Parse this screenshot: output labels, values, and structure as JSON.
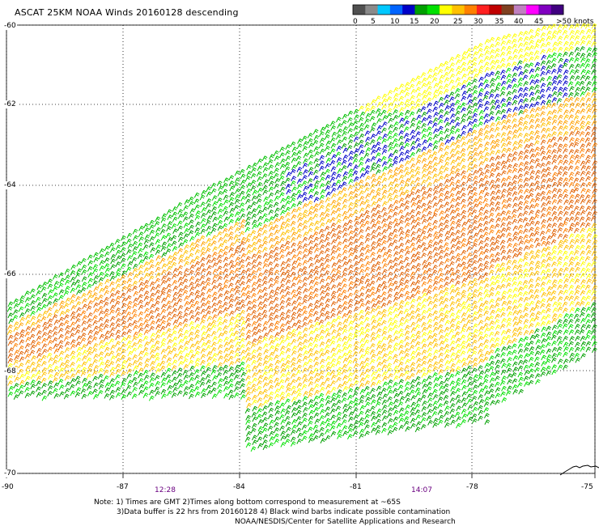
{
  "title": "ASCAT 25KM NOAA Winds 20160128 descending",
  "legend": {
    "labels": [
      "0",
      "5",
      "10",
      "15",
      "20",
      "25",
      "30",
      "35",
      "40",
      "45",
      ">50 knots"
    ],
    "colors": [
      "#505050",
      "#8a8a8a",
      "#00c8ff",
      "#0064ff",
      "#0000c8",
      "#00a000",
      "#00e000",
      "#ffff00",
      "#ffc000",
      "#ff8000",
      "#ff2020",
      "#c00000",
      "#7f4020",
      "#c080c0",
      "#ff00ff",
      "#8000c0",
      "#400080"
    ]
  },
  "axes": {
    "lat_labels": [
      "-60",
      "-62",
      "-64",
      "-66",
      "-68",
      "-70"
    ],
    "lon_labels": [
      "-90",
      "-87",
      "-84",
      "-81",
      "-78",
      "-75"
    ]
  },
  "times": [
    "12:28",
    "14:07"
  ],
  "notes": [
    "Note: 1) Times are GMT 2)Times along bottom correspond to measurement at ~65S",
    "3)Data buffer is 22 hrs from 20160128 4) Black wind barbs indicate possible contamination",
    "NOAA/NESDIS/Center for Satellite Applications and Research"
  ],
  "map": {
    "lon_range": [
      -90,
      -75
    ],
    "lat_range": [
      -70,
      -60
    ],
    "wind_speed_regions": [
      {
        "description": "northeast strip",
        "speed_knots": "15-25",
        "color": "#00c000"
      },
      {
        "description": "northeast edge",
        "speed_knots": "20-25",
        "color": "#ffff00"
      },
      {
        "description": "mid band",
        "speed_knots": "10-15",
        "color": "#0000c8"
      },
      {
        "description": "central swath",
        "speed_knots": "30-35",
        "color": "#e06000"
      },
      {
        "description": "southern swath",
        "speed_knots": "20-30",
        "color": "#ffc000"
      },
      {
        "description": "south edge",
        "speed_knots": "15-20",
        "color": "#00a000"
      }
    ]
  }
}
